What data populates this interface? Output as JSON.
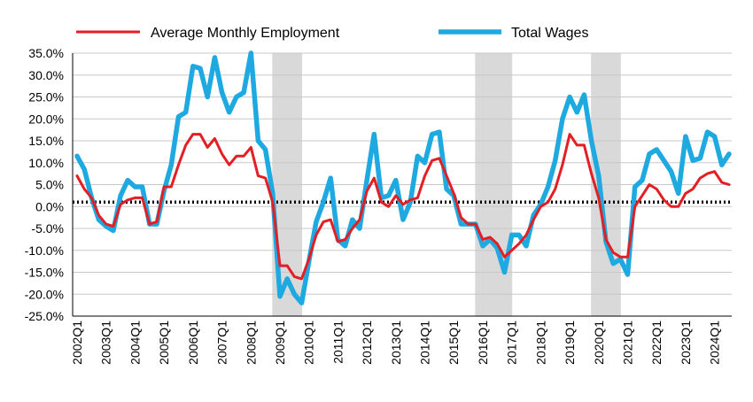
{
  "chart_data": {
    "type": "line",
    "x": [
      "2002Q1",
      "2002Q2",
      "2002Q3",
      "2002Q4",
      "2003Q1",
      "2003Q2",
      "2003Q3",
      "2003Q4",
      "2004Q1",
      "2004Q2",
      "2004Q3",
      "2004Q4",
      "2005Q1",
      "2005Q2",
      "2005Q3",
      "2005Q4",
      "2006Q1",
      "2006Q2",
      "2006Q3",
      "2006Q4",
      "2007Q1",
      "2007Q2",
      "2007Q3",
      "2007Q4",
      "2008Q1",
      "2008Q2",
      "2008Q3",
      "2008Q4",
      "2009Q1",
      "2009Q2",
      "2009Q3",
      "2009Q4",
      "2010Q1",
      "2010Q2",
      "2010Q3",
      "2010Q4",
      "2011Q1",
      "2011Q2",
      "2011Q3",
      "2011Q4",
      "2012Q1",
      "2012Q2",
      "2012Q3",
      "2012Q4",
      "2013Q1",
      "2013Q2",
      "2013Q3",
      "2013Q4",
      "2014Q1",
      "2014Q2",
      "2014Q3",
      "2014Q4",
      "2015Q1",
      "2015Q2",
      "2015Q3",
      "2015Q4",
      "2016Q1",
      "2016Q2",
      "2016Q3",
      "2016Q4",
      "2017Q1",
      "2017Q2",
      "2017Q3",
      "2017Q4",
      "2018Q1",
      "2018Q2",
      "2018Q3",
      "2018Q4",
      "2019Q1",
      "2019Q2",
      "2019Q3",
      "2019Q4",
      "2020Q1",
      "2020Q2",
      "2020Q3",
      "2020Q4",
      "2021Q1",
      "2021Q2",
      "2021Q3",
      "2021Q4",
      "2022Q1",
      "2022Q2",
      "2022Q3",
      "2022Q4",
      "2023Q1",
      "2023Q2",
      "2023Q3",
      "2023Q4",
      "2024Q1",
      "2024Q2",
      "2024Q3"
    ],
    "x_tick_labels": [
      "2002Q1",
      "2003Q1",
      "2004Q1",
      "2005Q1",
      "2006Q1",
      "2007Q1",
      "2008Q1",
      "2009Q1",
      "2010Q1",
      "2011Q1",
      "2012Q1",
      "2013Q1",
      "2014Q1",
      "2015Q1",
      "2016Q1",
      "2017Q1",
      "2018Q1",
      "2019Q1",
      "2020Q1",
      "2021Q1",
      "2022Q1",
      "2023Q1",
      "2024Q1"
    ],
    "series": [
      {
        "name": "Average Monthly Employment",
        "color": "#e31e24",
        "values": [
          7,
          4,
          2,
          -2,
          -4,
          -4.5,
          0.5,
          1.5,
          2,
          2,
          -4,
          -3.5,
          4.5,
          4.5,
          9.5,
          14,
          16.5,
          16.5,
          13.5,
          15.5,
          12,
          9.5,
          11.5,
          11.5,
          13.5,
          7,
          6.5,
          1,
          -13.5,
          -13.5,
          -16,
          -16.5,
          -12,
          -6.5,
          -3.5,
          -3,
          -8,
          -7.5,
          -5,
          -3,
          3.5,
          6.5,
          1,
          0,
          2.5,
          0.5,
          1.5,
          2,
          7,
          10.5,
          11,
          7,
          3,
          -2.5,
          -4,
          -4,
          -7.5,
          -7,
          -8.5,
          -11.5,
          -10,
          -8.5,
          -6.5,
          -3,
          0,
          1,
          4,
          9.5,
          16.5,
          14,
          14,
          7.5,
          2,
          -7.5,
          -10.5,
          -11.5,
          -11.5,
          0,
          2.5,
          5,
          4,
          1.5,
          0,
          0,
          3,
          4,
          6.5,
          7.5,
          8,
          5.5,
          5
        ]
      },
      {
        "name": "Total Wages",
        "color": "#1ea9e1",
        "values": [
          11.5,
          8.5,
          2,
          -3,
          -4.5,
          -5.5,
          2.5,
          6,
          4.5,
          4.5,
          -4,
          -4,
          3.5,
          9.5,
          20.5,
          21.5,
          32,
          31.5,
          25,
          34,
          26,
          21.5,
          25,
          26,
          35,
          15,
          13,
          3,
          -20.5,
          -16.5,
          -20,
          -22,
          -12.5,
          -3.5,
          1,
          6.5,
          -7.5,
          -9,
          -3,
          -5,
          6,
          16.5,
          2,
          2.5,
          6,
          -3,
          1,
          11.5,
          10,
          16.5,
          17,
          4,
          2.5,
          -4,
          -4,
          -4,
          -9,
          -7.5,
          -9.5,
          -15,
          -6.5,
          -6.5,
          -9,
          -2,
          0.5,
          4.5,
          10.5,
          20,
          25,
          21.5,
          25.5,
          15,
          7,
          -8,
          -13,
          -12,
          -15.5,
          4.5,
          6,
          12,
          13,
          10.5,
          8,
          3,
          16,
          10.5,
          11,
          17,
          16,
          9.5,
          12
        ]
      }
    ],
    "ylim": [
      -25,
      35
    ],
    "y_ticks": [
      "35.0%",
      "30.0%",
      "25.0%",
      "20.0%",
      "15.0%",
      "10.0%",
      "5.0%",
      "0.0%",
      "-5.0%",
      "-10.0%",
      "-15.0%",
      "-20.0%",
      "-25.0%"
    ],
    "y_tick_values": [
      35,
      30,
      25,
      20,
      15,
      10,
      5,
      0,
      -5,
      -10,
      -15,
      -20,
      -25
    ],
    "shaded_periods": [
      {
        "start": "2008Q4",
        "end": "2009Q4"
      },
      {
        "start": "2015Q4",
        "end": "2017Q1"
      },
      {
        "start": "2019Q4",
        "end": "2020Q4"
      }
    ],
    "reference_line": {
      "y": 1,
      "style": "dotted"
    },
    "grid": "horizontal",
    "legend_position": "top"
  }
}
